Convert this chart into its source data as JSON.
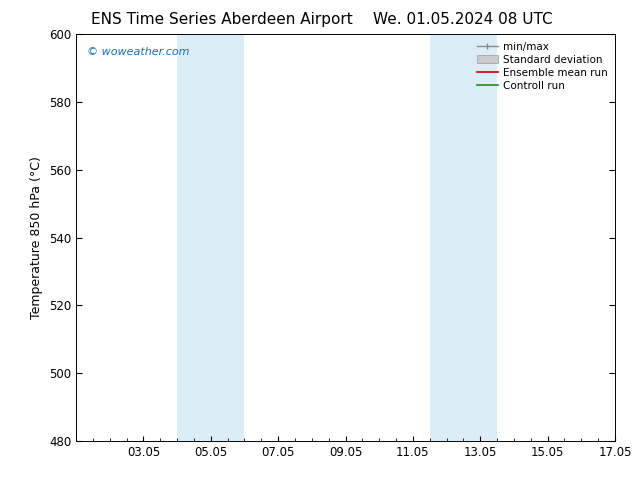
{
  "title_left": "ENS Time Series Aberdeen Airport",
  "title_right": "We. 01.05.2024 08 UTC",
  "ylabel": "Temperature 850 hPa (°C)",
  "ylim": [
    480,
    600
  ],
  "yticks": [
    480,
    500,
    520,
    540,
    560,
    580,
    600
  ],
  "xtick_labels": [
    "03.05",
    "05.05",
    "07.05",
    "09.05",
    "11.05",
    "13.05",
    "15.05",
    "17.05"
  ],
  "xtick_positions": [
    2,
    4,
    6,
    8,
    10,
    12,
    14,
    16
  ],
  "xlim": [
    0,
    16
  ],
  "shaded_bands": [
    {
      "x_start": 3.0,
      "x_end": 5.0
    },
    {
      "x_start": 10.5,
      "x_end": 12.5
    }
  ],
  "shaded_color": "#ddedf7",
  "background_color": "#ffffff",
  "watermark_text": "© woweather.com",
  "watermark_color": "#1a6db5",
  "legend_entries": [
    {
      "label": "min/max",
      "color": "#aaaaaa",
      "style": "errorbar"
    },
    {
      "label": "Standard deviation",
      "color": "#cccccc",
      "style": "fill"
    },
    {
      "label": "Ensemble mean run",
      "color": "#ff0000",
      "style": "line"
    },
    {
      "label": "Controll run",
      "color": "#228B22",
      "style": "line"
    }
  ],
  "title_fontsize": 11,
  "axis_fontsize": 9,
  "tick_fontsize": 8.5,
  "legend_fontsize": 7.5
}
